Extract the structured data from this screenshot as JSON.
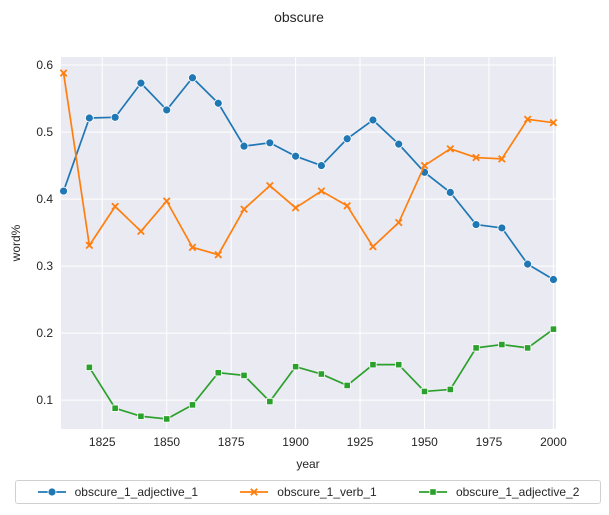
{
  "chart_data": {
    "type": "line",
    "title": "obscure",
    "xlabel": "year",
    "ylabel": "word%",
    "xlim": [
      1809,
      2001
    ],
    "ylim": [
      0.057,
      0.612
    ],
    "xticks": [
      1825,
      1850,
      1875,
      1900,
      1925,
      1950,
      1975,
      2000
    ],
    "yticks": [
      0.1,
      0.2,
      0.3,
      0.4,
      0.5,
      0.6
    ],
    "grid": true,
    "legend_position": "bottom",
    "series": [
      {
        "name": "obscure_1_adjective_1",
        "color": "#1f77b4",
        "marker": "circle",
        "x": [
          1810,
          1820,
          1830,
          1840,
          1850,
          1860,
          1870,
          1880,
          1890,
          1900,
          1910,
          1920,
          1930,
          1940,
          1950,
          1960,
          1970,
          1980,
          1990,
          2000
        ],
        "y": [
          0.412,
          0.521,
          0.522,
          0.573,
          0.533,
          0.581,
          0.543,
          0.479,
          0.484,
          0.464,
          0.45,
          0.49,
          0.518,
          0.482,
          0.44,
          0.41,
          0.362,
          0.357,
          0.303,
          0.28
        ]
      },
      {
        "name": "obscure_1_verb_1",
        "color": "#ff7f0e",
        "marker": "x",
        "x": [
          1810,
          1820,
          1830,
          1840,
          1850,
          1860,
          1870,
          1880,
          1890,
          1900,
          1910,
          1920,
          1930,
          1940,
          1950,
          1960,
          1970,
          1980,
          1990,
          2000
        ],
        "y": [
          0.588,
          0.331,
          0.389,
          0.352,
          0.397,
          0.328,
          0.317,
          0.385,
          0.42,
          0.387,
          0.412,
          0.39,
          0.329,
          0.365,
          0.45,
          0.475,
          0.462,
          0.46,
          0.519,
          0.514
        ]
      },
      {
        "name": "obscure_1_adjective_2",
        "color": "#2ca02c",
        "marker": "square",
        "x": [
          1820,
          1830,
          1840,
          1850,
          1860,
          1870,
          1880,
          1890,
          1900,
          1910,
          1920,
          1930,
          1940,
          1950,
          1960,
          1970,
          1980,
          1990,
          2000
        ],
        "y": [
          0.149,
          0.088,
          0.076,
          0.072,
          0.093,
          0.141,
          0.137,
          0.098,
          0.15,
          0.139,
          0.122,
          0.153,
          0.153,
          0.113,
          0.116,
          0.178,
          0.183,
          0.178,
          0.206
        ]
      }
    ]
  }
}
